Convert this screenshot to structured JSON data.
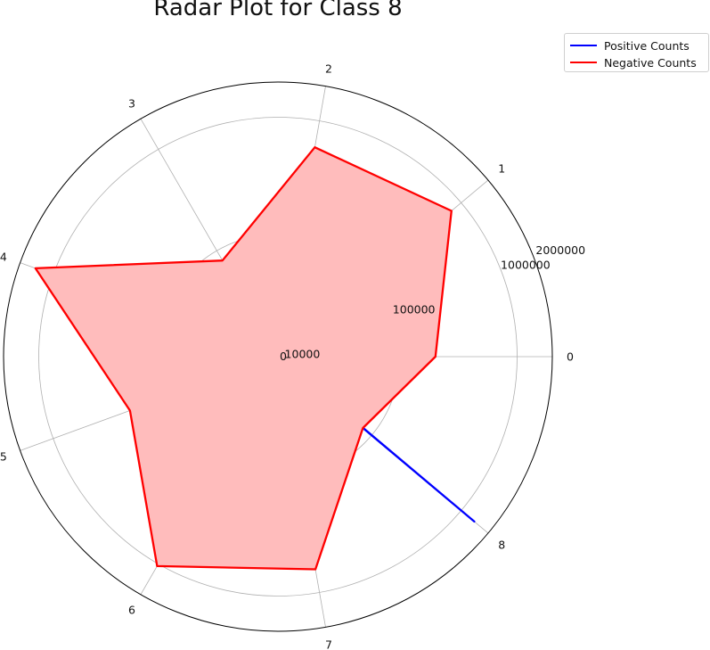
{
  "chart_data": {
    "type": "radar",
    "title": "Radar Plot for Class 8",
    "categories": [
      "0",
      "1",
      "2",
      "3",
      "4",
      "5",
      "6",
      "7",
      "8"
    ],
    "radial_ticks": [
      "0",
      "10000",
      "100000",
      "1000000",
      "2000000"
    ],
    "rlim": [
      0,
      2000000
    ],
    "radial_scale": "symlog",
    "grid": true,
    "legend_position": "upper right, outside plot",
    "series": [
      {
        "name": "Positive Counts",
        "color": "#0000ff",
        "filled": false,
        "values": [
          1000,
          0,
          0,
          0,
          300000,
          0,
          1000,
          0,
          1400000
        ]
      },
      {
        "name": "Negative Counts",
        "color": "#ff0000",
        "fill_color": "#ffbcbc",
        "filled": true,
        "values": [
          200000,
          780000,
          590000,
          80000,
          1450000,
          200000,
          1050000,
          630000,
          80000
        ]
      }
    ]
  }
}
